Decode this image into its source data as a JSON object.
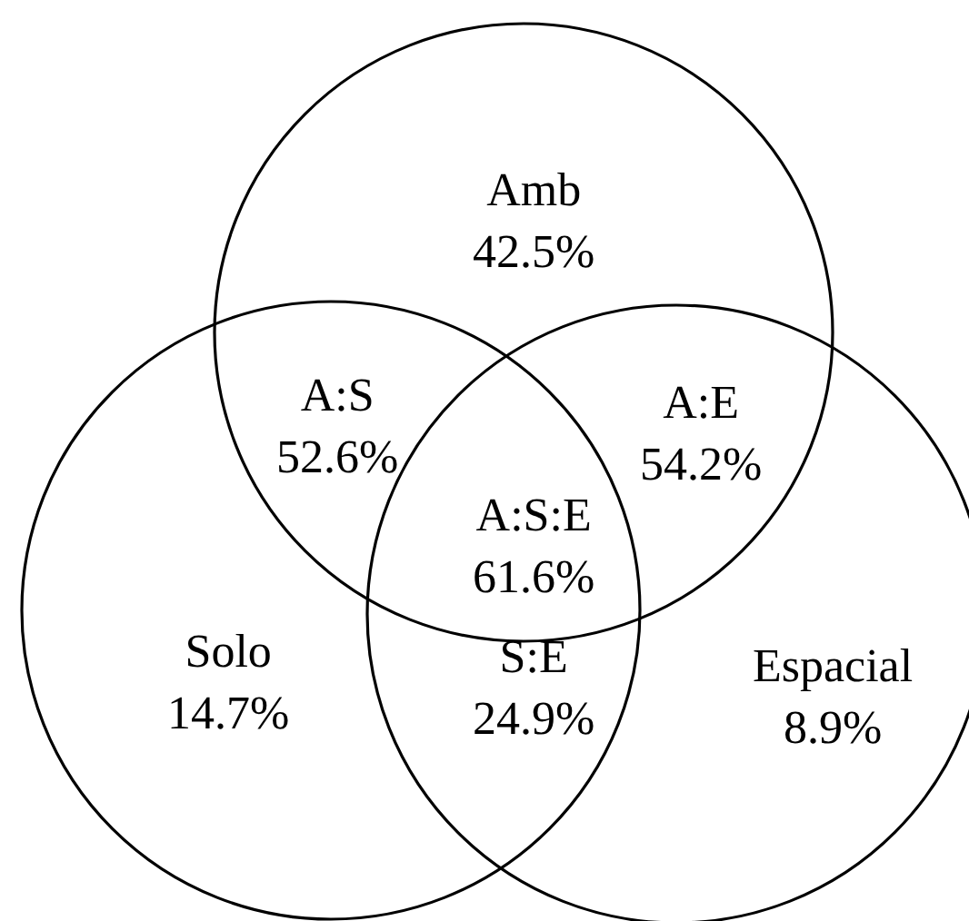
{
  "chart_data": {
    "type": "other",
    "categories": [
      "Amb",
      "A:S",
      "A:E",
      "A:S:E",
      "Solo",
      "S:E",
      "Espacial"
    ],
    "values": [
      42.5,
      52.6,
      54.2,
      61.6,
      14.7,
      24.9,
      8.9
    ],
    "value_labels": [
      "42.5%",
      "52.6%",
      "54.2%",
      "61.6%",
      "14.7%",
      "24.9%",
      "8.9%"
    ]
  }
}
